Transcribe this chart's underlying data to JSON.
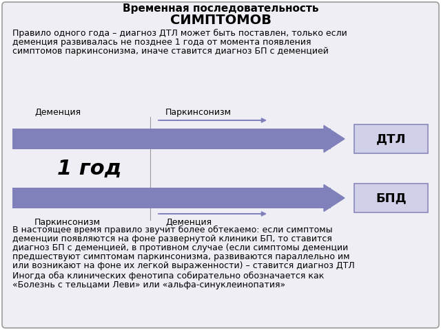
{
  "title_line1": "Временная последовательность",
  "title_line2": "СИМПТОМОВ",
  "bg_color": "#eeeef4",
  "border_color": "#aaaaaa",
  "arrow_color": "#8080bb",
  "arrow_color_light": "#a0a0cc",
  "box_color": "#d0d0e8",
  "box_border_color": "#8888bb",
  "text_color": "#000000",
  "gray_line_color": "#999999",
  "top_text_line1": "Правило одного года – диагноз ДТЛ может быть поставлен, только если",
  "top_text_line2": "деменция развивалась не позднее 1 года от момента появления",
  "top_text_line3": "симптомов паркинсонизма, иначе ставится диагноз БП с деменцией",
  "label_dementia_top": "Деменция",
  "label_parkinson_top": "Паркинсонизм",
  "label_parkinson_bottom": "Паркинсонизм",
  "label_dementia_bottom": "Деменция",
  "label_dtl": "ДТЛ",
  "label_bpd": "БПД",
  "year_label": "1 год",
  "bottom_text_line1": "В настоящее время правило звучит более обтекаемо: если симптомы",
  "bottom_text_line2": "деменции появляются на фоне развернутой клиники БП, то ставится",
  "bottom_text_line3": "диагноз БП с деменцией, в противном случае (если симптомы деменции",
  "bottom_text_line4": "предшествуют симптомам паркинсонизма, развиваются параллельно им",
  "bottom_text_line5": "или возникают на фоне их легкой выраженности) – ставится диагноз ДТЛ",
  "bottom_text_line6": "Иногда оба клинических фенотипа собирательно обозначается как",
  "bottom_text_line7": "«Болезнь с тельцами Леви» или «альфа-синуклеинопатия»"
}
